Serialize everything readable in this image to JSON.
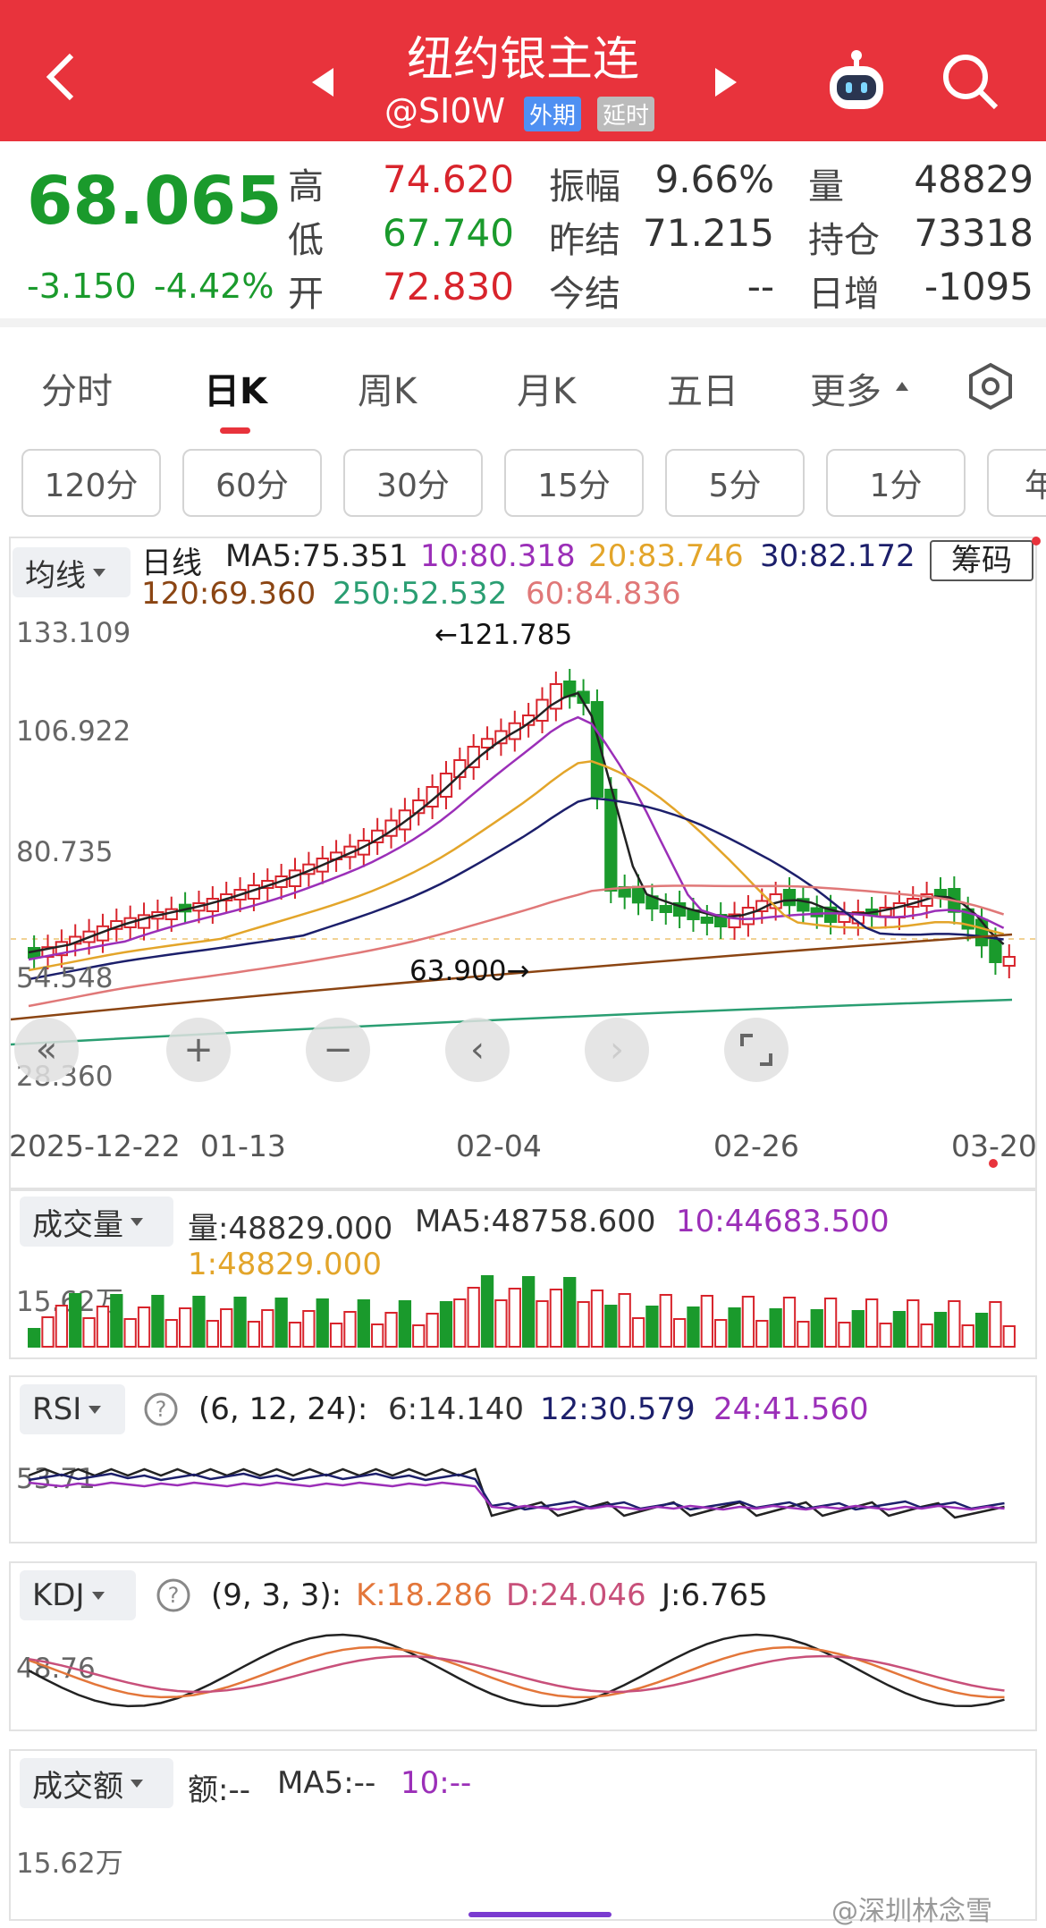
{
  "header": {
    "title": "纽约银主连",
    "code": "@SI0W",
    "tag1": "外期",
    "tag2": "延时"
  },
  "quote": {
    "price": "68.065",
    "change": "-3.150",
    "pct": "-4.42%",
    "rows": [
      {
        "l1": "高",
        "v1": "74.620",
        "l2": "振幅",
        "v2": "9.66%",
        "l3": "量",
        "v3": "48829"
      },
      {
        "l1": "低",
        "v1": "67.740",
        "l2": "昨结",
        "v2": "71.215",
        "l3": "持仓",
        "v3": "73318"
      },
      {
        "l1": "开",
        "v1": "72.830",
        "l2": "今结",
        "v2": "--",
        "l3": "日增",
        "v3": "-1095"
      }
    ]
  },
  "colors": {
    "up": "#d8242c",
    "down": "#1a9a2c",
    "accent": "#e8333c"
  },
  "tabs": [
    "分时",
    "日K",
    "周K",
    "月K",
    "五日",
    "更多"
  ],
  "periods": [
    "120分",
    "60分",
    "30分",
    "15分",
    "5分",
    "1分",
    "年"
  ],
  "ma": {
    "selector": "均线",
    "day": "日线",
    "ma5": "MA5:75.351",
    "ma10": "10:80.318",
    "ma20": "20:83.746",
    "ma30": "30:82.172",
    "ma120": "120:69.360",
    "ma250": "250:52.532",
    "ma60": "60:84.836",
    "chip": "筹码"
  },
  "yaxis": [
    "133.109",
    "106.922",
    "80.735",
    "54.548",
    "28.360"
  ],
  "xaxis": [
    "2025-12-22",
    "01-13",
    "02-04",
    "02-26",
    "03-20"
  ],
  "hi_label": "←121.785",
  "lo_label": "63.900→",
  "vol": {
    "selector": "成交量",
    "v": "量:48829.000",
    "ma5": "MA5:48758.600",
    "ma10": "10:44683.500",
    "ma1": "1:48829.000",
    "tick": "15.62万"
  },
  "rsi": {
    "selector": "RSI",
    "params": "(6, 12, 24):",
    "r6": "6:14.140",
    "r12": "12:30.579",
    "r24": "24:41.560",
    "tick": "53.71"
  },
  "kdj": {
    "selector": "KDJ",
    "params": "(9, 3, 3):",
    "k": "K:18.286",
    "d": "D:24.046",
    "j": "J:6.765",
    "tick": "48.76"
  },
  "amt": {
    "selector": "成交额",
    "e": "额:--",
    "ma5": "MA5:--",
    "ma10": "10:--",
    "tick": "15.62万"
  },
  "watermark": "@深圳林念雪",
  "chart_data": {
    "type": "candlestick",
    "title": "纽约银主连 日K",
    "ylim": [
      28.36,
      133.109
    ],
    "x_range": [
      "2025-12-22",
      "03-20"
    ],
    "high_marked": 121.785,
    "low_marked": 63.9,
    "last_close": 68.065
  }
}
